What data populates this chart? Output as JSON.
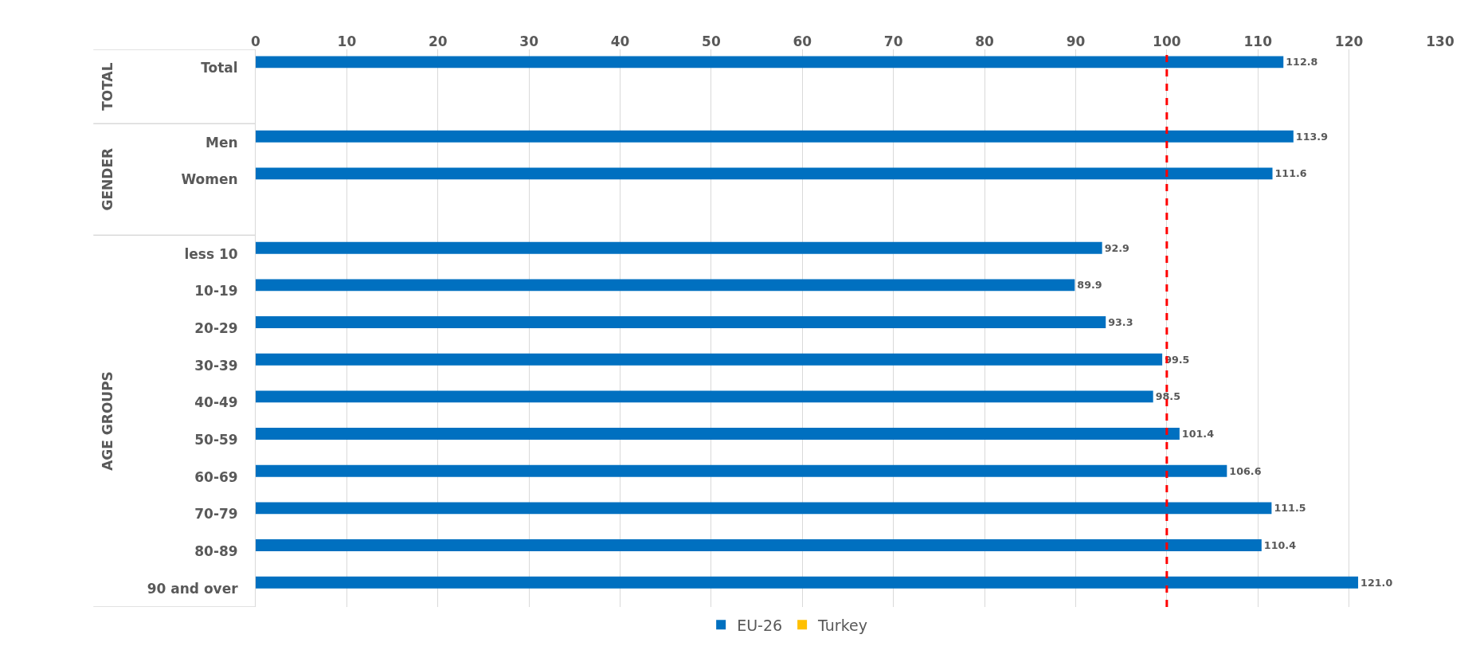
{
  "chart_data": {
    "type": "bar",
    "orientation": "horizontal",
    "categories": [
      "Total",
      null,
      "Men",
      "Women",
      null,
      "less 10",
      "10-19",
      "20-29",
      "30-39",
      "40-49",
      "50-59",
      "60-69",
      "70-79",
      "80-89",
      "90 and over"
    ],
    "series": [
      {
        "name": "EU-26",
        "color": "#0070c0",
        "values": [
          112.8,
          null,
          113.9,
          111.6,
          null,
          92.9,
          89.9,
          93.3,
          99.5,
          98.5,
          101.4,
          106.6,
          111.5,
          110.4,
          121.0
        ],
        "value_labels": [
          "112.8",
          null,
          "113.9",
          "111.6",
          null,
          "92.9",
          "89.9",
          "93.3",
          "99.5",
          "98.5",
          "101.4",
          "106.6",
          "111.5",
          "110.4",
          "121.0"
        ]
      },
      {
        "name": "Turkey",
        "color": "#ffc000",
        "values": [
          null,
          null,
          null,
          null,
          null,
          null,
          null,
          null,
          null,
          null,
          null,
          null,
          null,
          null,
          null
        ]
      }
    ],
    "xlim": [
      0,
      130
    ],
    "xticks": [
      0,
      10,
      20,
      30,
      40,
      50,
      60,
      70,
      80,
      90,
      100,
      110,
      120,
      130
    ],
    "grid": "x",
    "legend": "bottom",
    "ref_lines": [
      {
        "axis": "x",
        "value": 100,
        "color": "#ff0000",
        "line_style": "dashed"
      }
    ],
    "annotations": [
      "TOTAL",
      "GENDER",
      "AGE GROUPS"
    ]
  }
}
